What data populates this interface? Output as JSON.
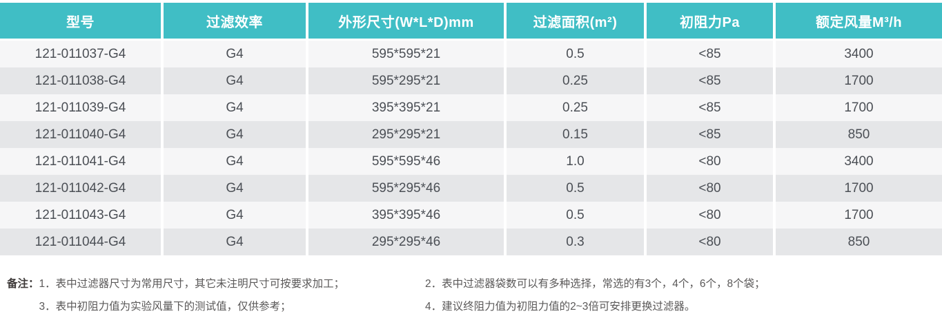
{
  "colors": {
    "header_bg": "#40BEC5",
    "header_text": "#FFFFFF",
    "row_light": "#F6F6F7",
    "row_dark": "#E5E6E8",
    "body_text": "#4B4F55",
    "note_text": "#5A5858"
  },
  "table": {
    "columns": [
      "型号",
      "过滤效率",
      "外形尺寸(W*L*D)mm",
      "过滤面积(m²)",
      "初阻力Pa",
      "额定风量M³/h"
    ],
    "rows": [
      [
        "121-011037-G4",
        "G4",
        "595*595*21",
        "0.5",
        "<85",
        "3400"
      ],
      [
        "121-011038-G4",
        "G4",
        "595*295*21",
        "0.25",
        "<85",
        "1700"
      ],
      [
        "121-011039-G4",
        "G4",
        "395*395*21",
        "0.25",
        "<85",
        "1700"
      ],
      [
        "121-011040-G4",
        "G4",
        "295*295*21",
        "0.15",
        "<85",
        "850"
      ],
      [
        "121-011041-G4",
        "G4",
        "595*595*46",
        "1.0",
        "<80",
        "3400"
      ],
      [
        "121-011042-G4",
        "G4",
        "595*295*46",
        "0.5",
        "<80",
        "1700"
      ],
      [
        "121-011043-G4",
        "G4",
        "395*395*46",
        "0.5",
        "<80",
        "1700"
      ],
      [
        "121-011044-G4",
        "G4",
        "295*295*46",
        "0.3",
        "<80",
        "850"
      ]
    ]
  },
  "notes": {
    "label": "备注：",
    "note1": "1．表中过滤器尺寸为常用尺寸，其它未注明尺寸可按要求加工；",
    "note2": "2．表中过滤器袋数可以有多种选择，常选的有3个，4个，6个，8个袋；",
    "note3": "3．表中初阻力值为实验风量下的测试值，仅供参考；",
    "note4": "4．建议终阻力值为初阻力值的2~3倍可安排更换过滤器。"
  }
}
